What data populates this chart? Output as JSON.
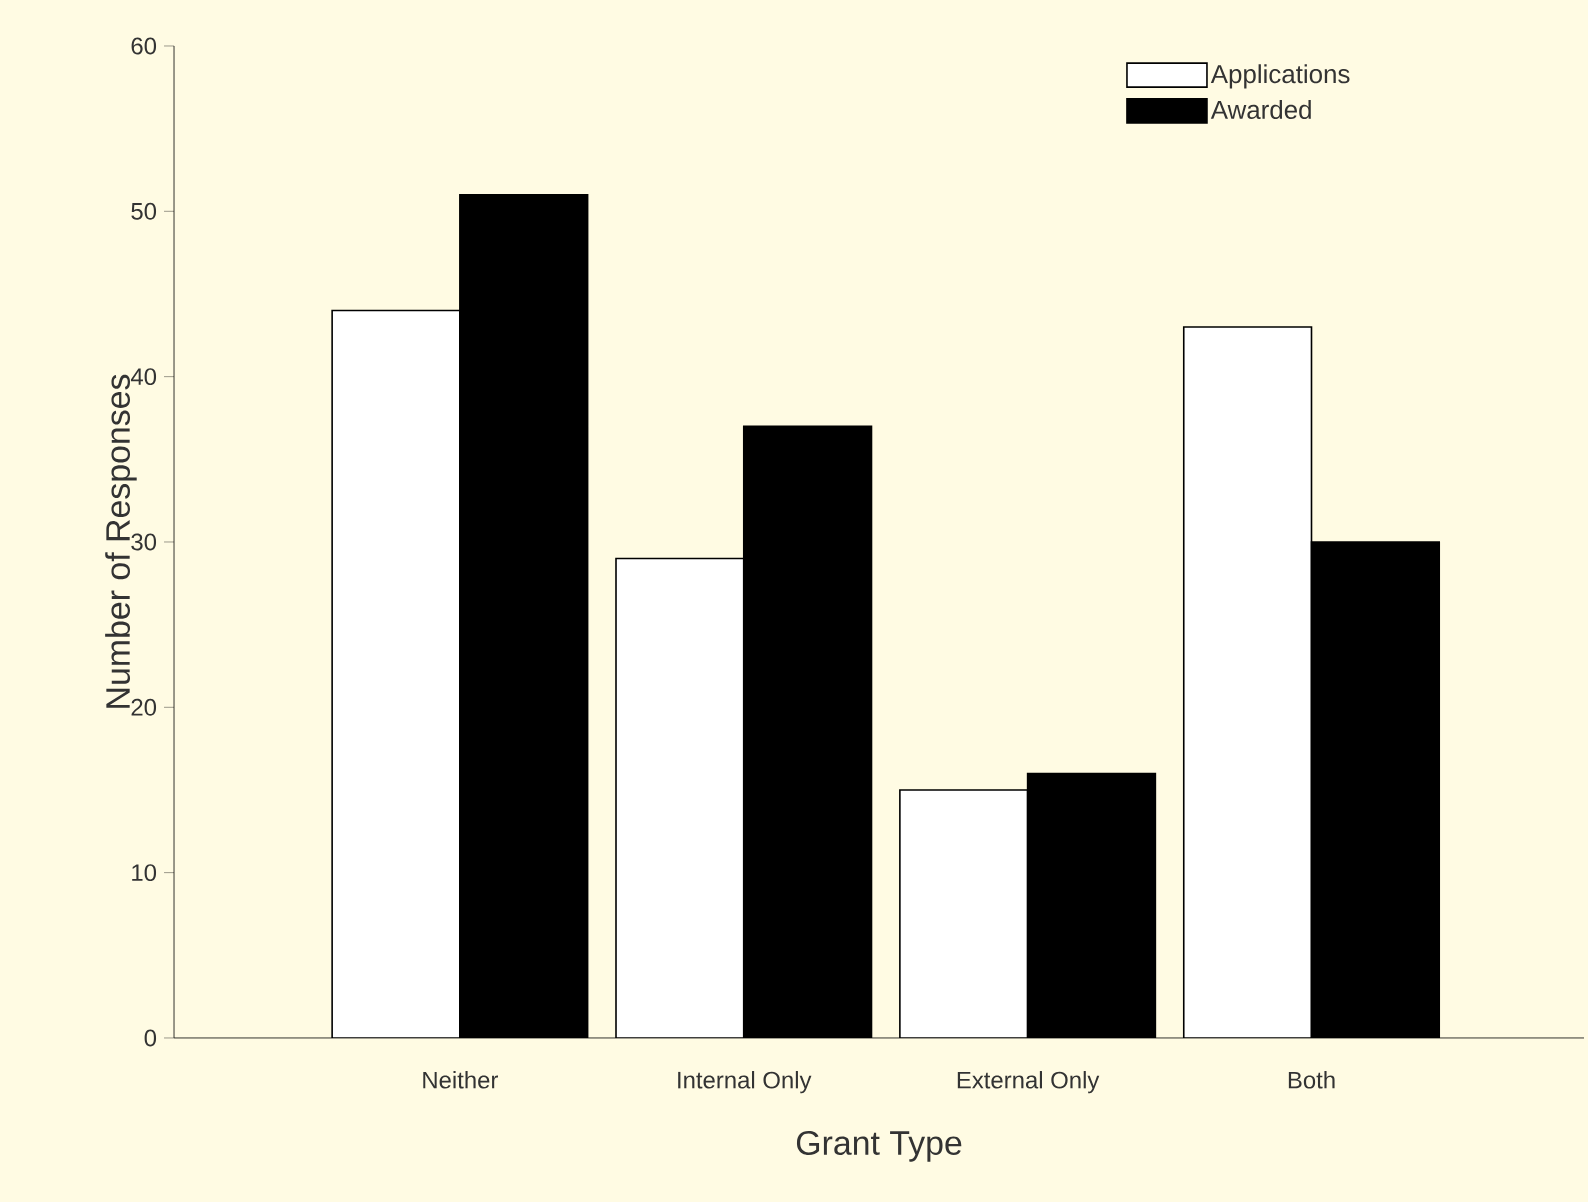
{
  "chart_data": {
    "type": "bar",
    "xlabel": "Grant Type",
    "ylabel": "Number of Responses",
    "categories": [
      "Neither",
      "Internal Only",
      "External Only",
      "Both"
    ],
    "series": [
      {
        "name": "Applications",
        "color": "#ffffff",
        "values": [
          44,
          29,
          15,
          43
        ]
      },
      {
        "name": "Awarded",
        "color": "#000000",
        "values": [
          51,
          37,
          16,
          30
        ]
      }
    ],
    "ylim": [
      0,
      60
    ],
    "yticks": [
      0,
      10,
      20,
      30,
      40,
      50,
      60
    ],
    "legend": "top right"
  }
}
